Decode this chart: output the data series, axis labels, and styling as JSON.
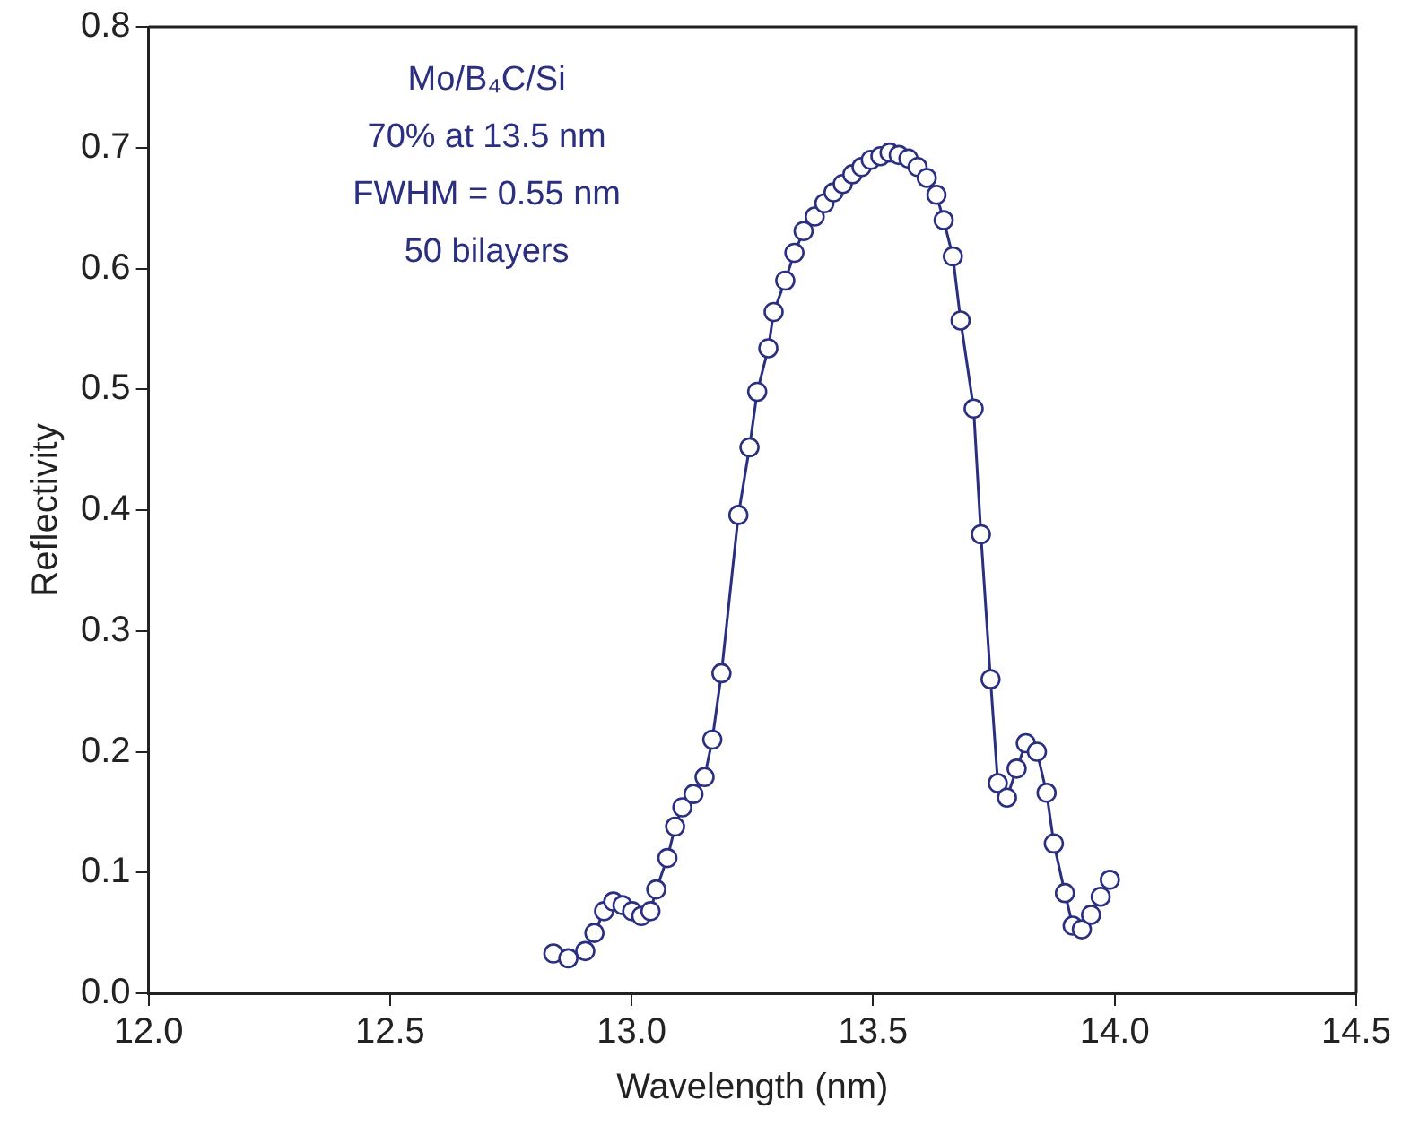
{
  "chart_data": {
    "type": "line",
    "xlabel": "Wavelength (nm)",
    "ylabel": "Reflectivity",
    "annotations": [
      "Mo/B₄C/Si",
      "70% at 13.5 nm",
      "FWHM = 0.55 nm",
      "50 bilayers"
    ],
    "xlim": [
      12,
      14.5
    ],
    "ylim": [
      0,
      0.8
    ],
    "xticks": [
      {
        "value": 12,
        "label": "12.0"
      },
      12.5,
      {
        "value": 13,
        "label": "13.0"
      },
      13.5,
      {
        "value": 14,
        "label": "14.0"
      },
      14.5
    ],
    "yticks": [
      {
        "value": 0,
        "label": "0.0"
      },
      0.1,
      0.2,
      0.3,
      0.4,
      0.5,
      0.6,
      0.7,
      0.8
    ],
    "grid": false,
    "legend": false,
    "marker": "circle",
    "line_style": "solid",
    "series": [
      {
        "color": "#2a2f80",
        "x": [
          12.838,
          12.869,
          12.904,
          12.923,
          12.943,
          12.962,
          12.981,
          13.001,
          13.02,
          13.039,
          13.051,
          13.074,
          13.09,
          13.105,
          13.128,
          13.151,
          13.167,
          13.186,
          13.221,
          13.244,
          13.26,
          13.283,
          13.294,
          13.318,
          13.337,
          13.356,
          13.379,
          13.399,
          13.418,
          13.437,
          13.457,
          13.476,
          13.495,
          13.515,
          13.534,
          13.553,
          13.573,
          13.592,
          13.611,
          13.631,
          13.646,
          13.665,
          13.681,
          13.708,
          13.723,
          13.743,
          13.758,
          13.777,
          13.797,
          13.816,
          13.839,
          13.859,
          13.874,
          13.897,
          13.913,
          13.932,
          13.951,
          13.971,
          13.99
        ],
        "values": [
          0.033,
          0.029,
          0.035,
          0.05,
          0.068,
          0.076,
          0.073,
          0.068,
          0.064,
          0.068,
          0.086,
          0.112,
          0.138,
          0.154,
          0.165,
          0.179,
          0.21,
          0.265,
          0.396,
          0.452,
          0.498,
          0.534,
          0.564,
          0.59,
          0.613,
          0.631,
          0.643,
          0.654,
          0.663,
          0.67,
          0.678,
          0.684,
          0.69,
          0.693,
          0.696,
          0.694,
          0.691,
          0.684,
          0.675,
          0.661,
          0.64,
          0.61,
          0.557,
          0.484,
          0.38,
          0.26,
          0.174,
          0.162,
          0.186,
          0.207,
          0.2,
          0.166,
          0.124,
          0.083,
          0.056,
          0.053,
          0.065,
          0.08,
          0.094
        ]
      }
    ]
  }
}
